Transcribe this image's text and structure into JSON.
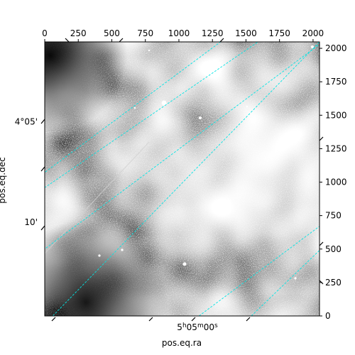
{
  "chart_data": {
    "type": "image",
    "xlabel": "pos.eq.ra",
    "ylabel": "pos.eq.dec",
    "pixel_axes": {
      "x": {
        "range": [
          0,
          2048
        ],
        "ticks": [
          0,
          250,
          500,
          750,
          1000,
          1250,
          1500,
          1750,
          2000
        ]
      },
      "y": {
        "range": [
          0,
          2048
        ],
        "ticks": [
          0,
          250,
          500,
          750,
          1000,
          1250,
          1500,
          1750,
          2000
        ]
      }
    },
    "world_axes": {
      "ra_ticks": [
        {
          "value": 1150,
          "h": "5",
          "m": "05",
          "s": "00"
        }
      ],
      "dec_ticks": [
        {
          "value": 1450,
          "label": "4°05'"
        },
        {
          "value": 700,
          "label": "10'"
        }
      ]
    },
    "grid": {
      "shown": true,
      "color": "#00e5e5",
      "ra_lines": [
        {
          "x0": -1440,
          "y0": 0,
          "x1": 1310,
          "y1": 2048
        },
        {
          "x0": -670,
          "y0": 0,
          "x1": 2048,
          "y1": 2030
        },
        {
          "x0": 1150,
          "y0": 0,
          "x1": 2048,
          "y1": 670
        }
      ],
      "dec_lines": [
        {
          "x0": 60,
          "y0": 0,
          "x1": 2048,
          "y1": 2048
        },
        {
          "x0": -1400,
          "y0": 0,
          "x1": 1590,
          "y1": 2048
        },
        {
          "x0": 1540,
          "y0": 0,
          "x1": 2048,
          "y1": 490
        }
      ]
    },
    "colormap": "gray"
  }
}
